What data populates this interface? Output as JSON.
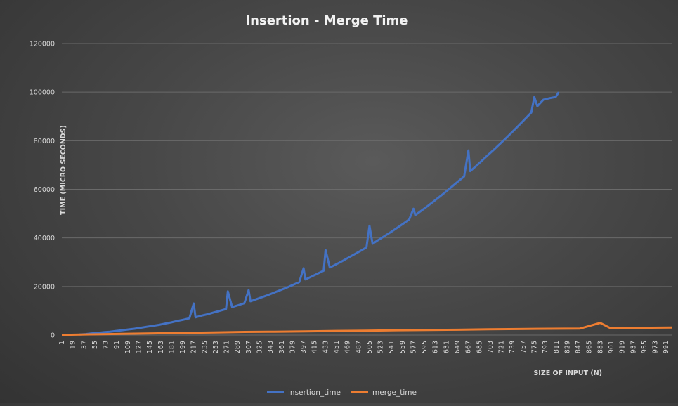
{
  "chart_data": {
    "type": "line",
    "title": "Insertion - Merge Time",
    "xlabel": "SIZE OF INPUT (N)",
    "ylabel": "TIME (MICRO SECONDS)",
    "ylim": [
      0,
      120000
    ],
    "yticks": [
      "0",
      "20000",
      "40000",
      "60000",
      "80000",
      "100000",
      "120000"
    ],
    "xlim": [
      1,
      1000
    ],
    "xticks": [
      "1",
      "19",
      "37",
      "55",
      "73",
      "91",
      "109",
      "127",
      "145",
      "163",
      "181",
      "199",
      "217",
      "235",
      "253",
      "271",
      "289",
      "307",
      "325",
      "343",
      "361",
      "379",
      "397",
      "415",
      "433",
      "451",
      "469",
      "487",
      "505",
      "523",
      "541",
      "559",
      "577",
      "595",
      "613",
      "631",
      "649",
      "667",
      "685",
      "703",
      "721",
      "739",
      "757",
      "775",
      "793",
      "811",
      "829",
      "847",
      "865",
      "883",
      "901",
      "919",
      "937",
      "955",
      "973",
      "991"
    ],
    "grid": true,
    "legend": "bottom",
    "colors": {
      "insertion_time": "#4472c4",
      "merge_time": "#ed7d31",
      "grid": "#6a6a6a",
      "background": "#474747"
    },
    "series": [
      {
        "name": "insertion_time",
        "x": [
          30,
          40,
          50,
          60,
          70,
          80,
          90,
          100,
          110,
          120,
          130,
          140,
          150,
          160,
          170,
          180,
          190,
          200,
          210,
          217,
          220,
          230,
          240,
          250,
          260,
          270,
          273,
          280,
          290,
          300,
          307,
          310,
          320,
          330,
          340,
          350,
          360,
          370,
          380,
          390,
          397,
          400,
          410,
          420,
          430,
          433,
          440,
          450,
          460,
          470,
          480,
          490,
          500,
          505,
          510,
          520,
          530,
          540,
          550,
          560,
          570,
          577,
          580,
          590,
          600,
          610,
          620,
          630,
          640,
          650,
          660,
          667,
          670,
          680,
          690,
          700,
          710,
          720,
          730,
          740,
          750,
          760,
          770,
          775,
          780,
          790,
          800,
          810,
          815
        ],
        "y": [
          200,
          400,
          700,
          900,
          1200,
          1400,
          1700,
          2000,
          2300,
          2600,
          3000,
          3400,
          3800,
          4200,
          4700,
          5200,
          5800,
          6300,
          6900,
          13000,
          7300,
          8000,
          8600,
          9300,
          10000,
          10700,
          18000,
          11500,
          12300,
          13100,
          18500,
          13900,
          14800,
          15700,
          16600,
          17600,
          18600,
          19600,
          20700,
          21800,
          27500,
          22900,
          24100,
          25300,
          26500,
          35000,
          27800,
          29100,
          30400,
          31800,
          33200,
          34600,
          36100,
          45000,
          37600,
          39200,
          40800,
          42400,
          44100,
          45800,
          47600,
          52000,
          49400,
          51200,
          53100,
          55000,
          57000,
          59000,
          61100,
          63200,
          65300,
          76000,
          67500,
          69700,
          72000,
          74300,
          76600,
          79000,
          81400,
          83900,
          86400,
          89000,
          91600,
          98000,
          94200,
          96900,
          97500,
          98000,
          100000
        ]
      },
      {
        "name": "merge_time",
        "x": [
          1,
          50,
          100,
          150,
          200,
          250,
          300,
          350,
          400,
          450,
          500,
          550,
          600,
          650,
          700,
          750,
          800,
          850,
          883,
          900,
          950,
          1000
        ],
        "y": [
          100,
          300,
          500,
          700,
          900,
          1100,
          1300,
          1400,
          1500,
          1700,
          1800,
          2000,
          2100,
          2200,
          2400,
          2500,
          2600,
          2700,
          5000,
          2800,
          3000,
          3100
        ]
      }
    ]
  }
}
